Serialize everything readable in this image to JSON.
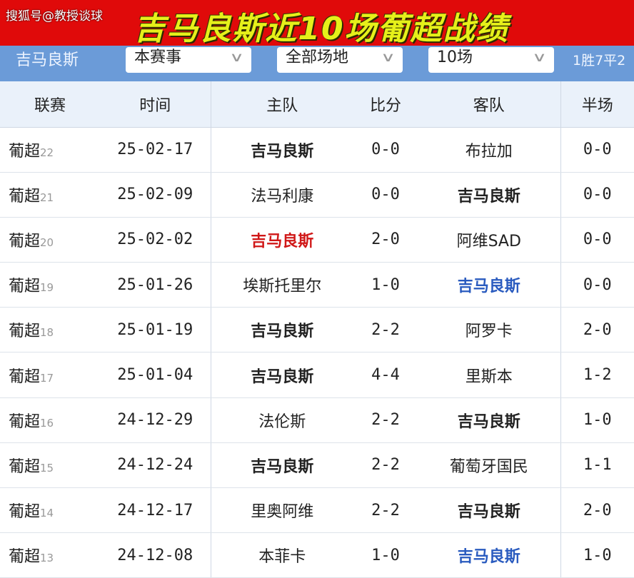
{
  "banner": {
    "watermark": "搜狐号@教授谈球",
    "title": "吉马良斯近10场葡超战绩"
  },
  "filters": {
    "team": "吉马良斯",
    "competition": "本赛事",
    "venue": "全部场地",
    "count": "10场",
    "record": "1胜7平2"
  },
  "headers": [
    "联赛",
    "时间",
    "主队",
    "比分",
    "客队",
    "半场"
  ],
  "colors": {
    "banner": "#e00a0a",
    "title": "#e6f01a",
    "filterbar": "#6b9bd8",
    "win": "#d01818",
    "loss": "#2a5bbf"
  },
  "rows": [
    {
      "league": "葡超",
      "round": "22",
      "date": "25-02-17",
      "home": "吉马良斯",
      "score": "0-0",
      "away": "布拉加",
      "half": "0-0",
      "hs": "b",
      "as": ""
    },
    {
      "league": "葡超",
      "round": "21",
      "date": "25-02-09",
      "home": "法马利康",
      "score": "0-0",
      "away": "吉马良斯",
      "half": "0-0",
      "hs": "",
      "as": "b"
    },
    {
      "league": "葡超",
      "round": "20",
      "date": "25-02-02",
      "home": "吉马良斯",
      "score": "2-0",
      "away": "阿维SAD",
      "half": "0-0",
      "hs": "red",
      "as": ""
    },
    {
      "league": "葡超",
      "round": "19",
      "date": "25-01-26",
      "home": "埃斯托里尔",
      "score": "1-0",
      "away": "吉马良斯",
      "half": "0-0",
      "hs": "",
      "as": "blue"
    },
    {
      "league": "葡超",
      "round": "18",
      "date": "25-01-19",
      "home": "吉马良斯",
      "score": "2-2",
      "away": "阿罗卡",
      "half": "2-0",
      "hs": "b",
      "as": ""
    },
    {
      "league": "葡超",
      "round": "17",
      "date": "25-01-04",
      "home": "吉马良斯",
      "score": "4-4",
      "away": "里斯本",
      "half": "1-2",
      "hs": "b",
      "as": ""
    },
    {
      "league": "葡超",
      "round": "16",
      "date": "24-12-29",
      "home": "法伦斯",
      "score": "2-2",
      "away": "吉马良斯",
      "half": "1-0",
      "hs": "",
      "as": "b"
    },
    {
      "league": "葡超",
      "round": "15",
      "date": "24-12-24",
      "home": "吉马良斯",
      "score": "2-2",
      "away": "葡萄牙国民",
      "half": "1-1",
      "hs": "b",
      "as": ""
    },
    {
      "league": "葡超",
      "round": "14",
      "date": "24-12-17",
      "home": "里奥阿维",
      "score": "2-2",
      "away": "吉马良斯",
      "half": "2-0",
      "hs": "",
      "as": "b"
    },
    {
      "league": "葡超",
      "round": "13",
      "date": "24-12-08",
      "home": "本菲卡",
      "score": "1-0",
      "away": "吉马良斯",
      "half": "1-0",
      "hs": "",
      "as": "blue"
    }
  ]
}
